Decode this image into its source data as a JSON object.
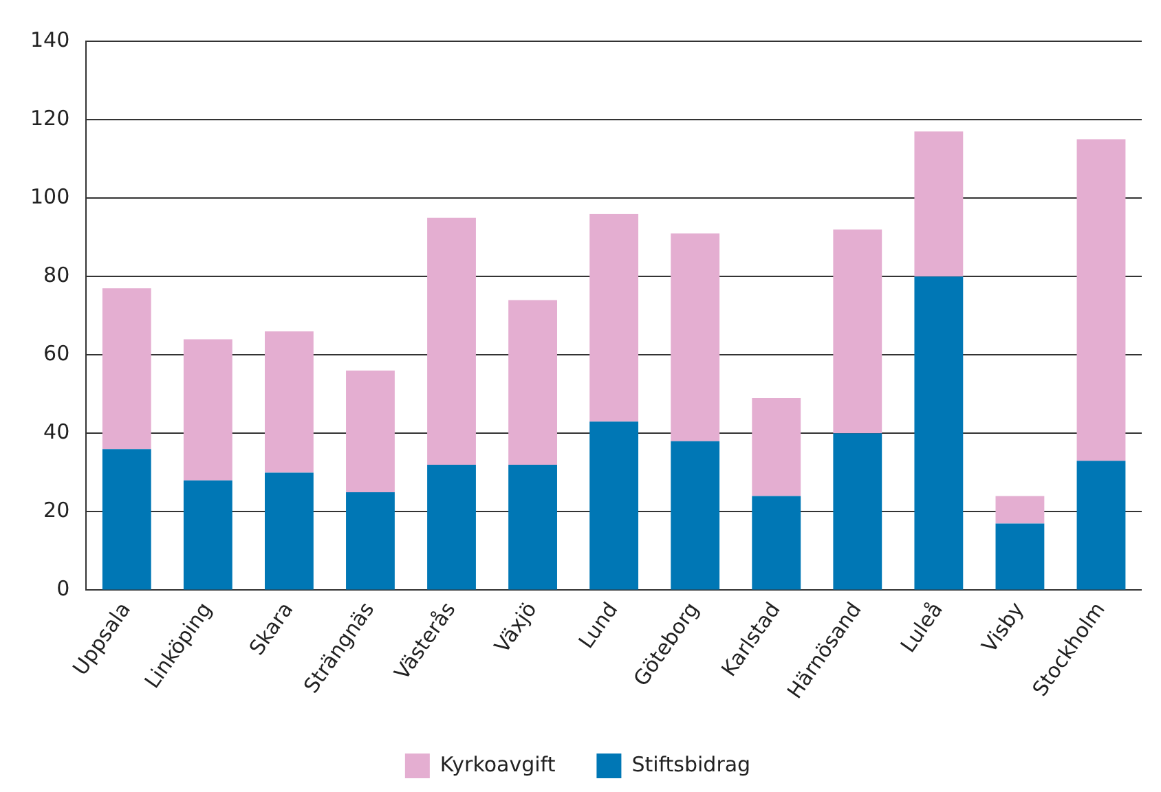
{
  "chart_data": {
    "type": "bar",
    "stacked": true,
    "categories": [
      "Uppsala",
      "Linköping",
      "Skara",
      "Strängnäs",
      "Västerås",
      "Växjö",
      "Lund",
      "Göteborg",
      "Karlstad",
      "Härnösand",
      "Luleå",
      "Visby",
      "Stockholm"
    ],
    "series": [
      {
        "name": "Stiftsbidrag",
        "color": "#0077b5",
        "values": [
          36,
          28,
          30,
          25,
          32,
          32,
          43,
          38,
          24,
          40,
          80,
          17,
          33
        ]
      },
      {
        "name": "Kyrkoavgift",
        "color": "#e4aed1",
        "values": [
          41,
          36,
          36,
          31,
          63,
          42,
          53,
          53,
          25,
          52,
          37,
          7,
          82
        ]
      }
    ],
    "ylim": [
      0,
      140
    ],
    "yticks": [
      0,
      20,
      40,
      60,
      80,
      100,
      120,
      140
    ],
    "grid": "y",
    "legend": "bottom"
  }
}
